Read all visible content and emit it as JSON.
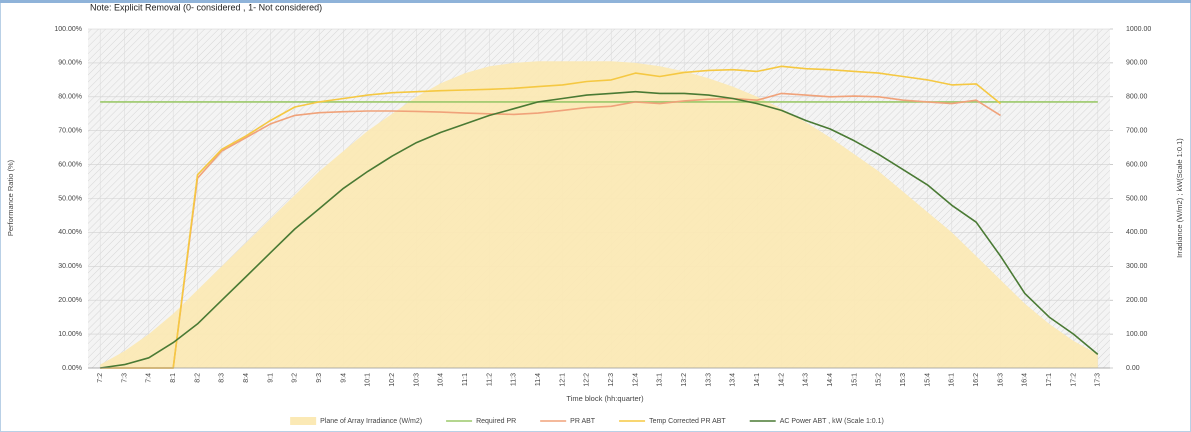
{
  "chart_data": {
    "type": "line",
    "note": "Note: Explicit Removal (0- considered , 1- Not considered)",
    "xlabel": "Time block (hh:quarter)",
    "ylabel": "Performance Ratio (%)",
    "y2label": "Irradiance (W/m2) ; kW(Scale 1:0.1)",
    "categories": [
      "7:2",
      "7:3",
      "7:4",
      "8:1",
      "8:2",
      "8:3",
      "8:4",
      "9:1",
      "9:2",
      "9:3",
      "9:4",
      "10:1",
      "10:2",
      "10:3",
      "10:4",
      "11:1",
      "11:2",
      "11:3",
      "11:4",
      "12:1",
      "12:2",
      "12:3",
      "12:4",
      "13:1",
      "13:2",
      "13:3",
      "13:4",
      "14:1",
      "14:2",
      "14:3",
      "14:4",
      "15:1",
      "15:2",
      "15:3",
      "15:4",
      "16:1",
      "16:2",
      "16:3",
      "16:4",
      "17:1",
      "17:2",
      "17:3"
    ],
    "ylim": [
      0,
      100
    ],
    "yticks": [
      {
        "value": 0,
        "label": "0.00%"
      },
      {
        "value": 10,
        "label": "10.00%"
      },
      {
        "value": 20,
        "label": "20.00%"
      },
      {
        "value": 30,
        "label": "30.00%"
      },
      {
        "value": 40,
        "label": "40.00%"
      },
      {
        "value": 50,
        "label": "50.00%"
      },
      {
        "value": 60,
        "label": "60.00%"
      },
      {
        "value": 70,
        "label": "70.00%"
      },
      {
        "value": 80,
        "label": "80.00%"
      },
      {
        "value": 90,
        "label": "90.00%"
      },
      {
        "value": 100,
        "label": "100.00%"
      }
    ],
    "y2lim": [
      0,
      1000
    ],
    "y2ticks": [
      {
        "value": 0,
        "label": "0.00"
      },
      {
        "value": 100,
        "label": "100.00"
      },
      {
        "value": 200,
        "label": "200.00"
      },
      {
        "value": 300,
        "label": "300.00"
      },
      {
        "value": 400,
        "label": "400.00"
      },
      {
        "value": 500,
        "label": "500.00"
      },
      {
        "value": 600,
        "label": "600.00"
      },
      {
        "value": 700,
        "label": "700.00"
      },
      {
        "value": 800,
        "label": "800.00"
      },
      {
        "value": 900,
        "label": "900.00"
      },
      {
        "value": 1000,
        "label": "1000.00"
      }
    ],
    "grid": true,
    "legend": "bottom",
    "series": [
      {
        "name": "Plane of Array Irradiance (W/m2)",
        "color": "#fbe9b5",
        "area": true,
        "axis": "y2",
        "values": [
          10,
          50,
          100,
          160,
          230,
          300,
          370,
          440,
          510,
          580,
          640,
          700,
          750,
          800,
          840,
          870,
          890,
          900,
          905,
          905,
          905,
          905,
          900,
          890,
          875,
          855,
          830,
          800,
          765,
          725,
          680,
          630,
          580,
          520,
          460,
          400,
          330,
          260,
          190,
          130,
          80,
          40
        ]
      },
      {
        "name": "Required PR",
        "color": "#9bc86a",
        "values": [
          78.5,
          78.5,
          78.5,
          78.5,
          78.5,
          78.5,
          78.5,
          78.5,
          78.5,
          78.5,
          78.5,
          78.5,
          78.5,
          78.5,
          78.5,
          78.5,
          78.5,
          78.5,
          78.5,
          78.5,
          78.5,
          78.5,
          78.5,
          78.5,
          78.5,
          78.5,
          78.5,
          78.5,
          78.5,
          78.5,
          78.5,
          78.5,
          78.5,
          78.5,
          78.5,
          78.5,
          78.5,
          78.5,
          78.5,
          78.5,
          78.5,
          78.5
        ]
      },
      {
        "name": "PR ABT",
        "color": "#f0a27a",
        "values": [
          0,
          0,
          0,
          0,
          56,
          64,
          68,
          72,
          74.5,
          75.3,
          75.6,
          75.8,
          75.8,
          75.7,
          75.5,
          75.2,
          75,
          74.8,
          75.2,
          76,
          76.8,
          77.2,
          78.5,
          78,
          78.8,
          79.3,
          79.5,
          79,
          81,
          80.5,
          80,
          80.2,
          80,
          79,
          78.5,
          78,
          79,
          74.5,
          null,
          null,
          null,
          null
        ]
      },
      {
        "name": "Temp Corrected PR ABT",
        "color": "#f5c842",
        "values": [
          0,
          0,
          0,
          0,
          57,
          64.5,
          68.5,
          73,
          77,
          78.5,
          79.5,
          80.5,
          81.2,
          81.5,
          81.8,
          82,
          82.2,
          82.5,
          83,
          83.5,
          84.5,
          85,
          87,
          86,
          87.2,
          87.8,
          88,
          87.5,
          89,
          88.3,
          88,
          87.5,
          87,
          86,
          85,
          83.5,
          83.8,
          78,
          null,
          null,
          null,
          null
        ]
      },
      {
        "name": "AC Power ABT , kW (Scale 1:0.1)",
        "color": "#4a7a34",
        "axis": "y2",
        "values": [
          0,
          10,
          30,
          75,
          130,
          200,
          270,
          340,
          410,
          470,
          530,
          580,
          625,
          665,
          695,
          720,
          745,
          765,
          785,
          795,
          805,
          810,
          815,
          810,
          810,
          805,
          795,
          780,
          760,
          730,
          705,
          670,
          630,
          585,
          540,
          480,
          430,
          330,
          220,
          150,
          100,
          40
        ]
      }
    ]
  }
}
